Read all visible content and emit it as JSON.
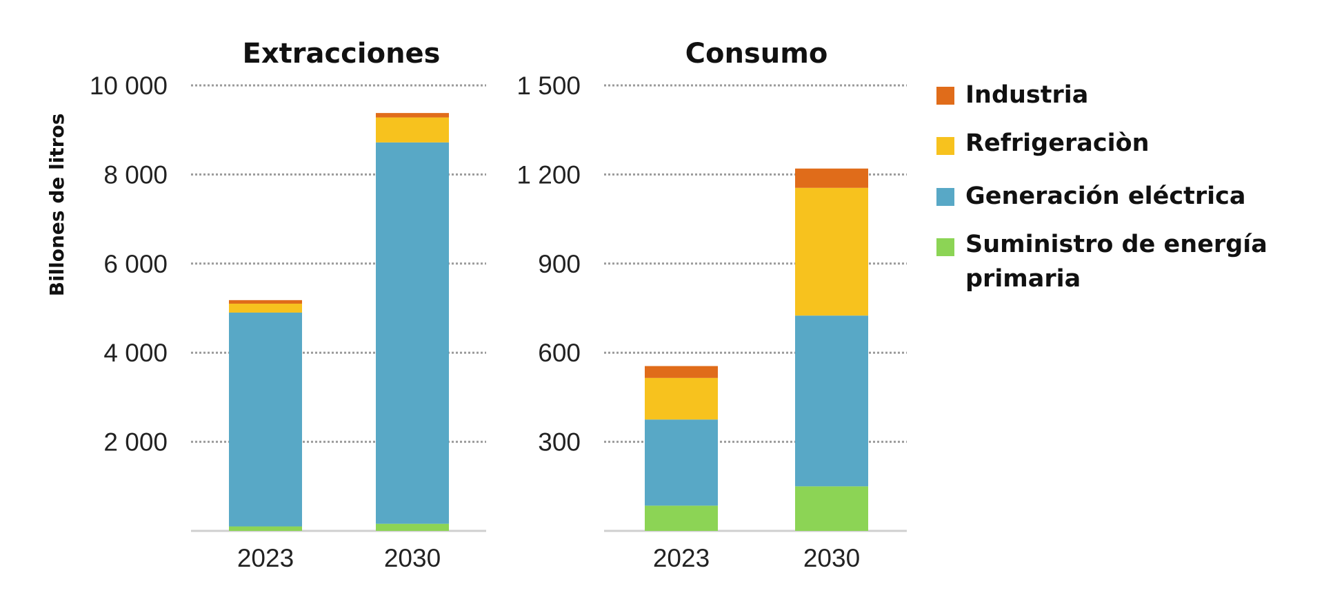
{
  "legend": [
    {
      "name": "Industria",
      "color": "#E06C1A"
    },
    {
      "name": "Refrigeraciòn",
      "color": "#F7C21E"
    },
    {
      "name": "Generación eléctrica",
      "color": "#58A8C6"
    },
    {
      "name": "Suministro de energía primaria",
      "color": "#8CD455"
    }
  ],
  "chart_data": [
    {
      "type": "bar",
      "stacked": true,
      "title": "Extracciones",
      "ylabel": "Billones de litros",
      "xlabel": "",
      "categories": [
        "2023",
        "2030"
      ],
      "ylim": [
        0,
        10000
      ],
      "yticks": [
        2000,
        4000,
        6000,
        8000,
        10000
      ],
      "ytick_labels": [
        "2 000",
        "4 000",
        "6 000",
        "8 000",
        "10 000"
      ],
      "grid": true,
      "series": [
        {
          "name": "Suministro de energía primaria",
          "color": "#8CD455",
          "values": [
            100,
            160
          ]
        },
        {
          "name": "Generación eléctrica",
          "color": "#58A8C6",
          "values": [
            4800,
            8560
          ]
        },
        {
          "name": "Refrigeraciòn",
          "color": "#F7C21E",
          "values": [
            200,
            560
          ]
        },
        {
          "name": "Industria",
          "color": "#E06C1A",
          "values": [
            80,
            100
          ]
        }
      ]
    },
    {
      "type": "bar",
      "stacked": true,
      "title": "Consumo",
      "ylabel": "",
      "xlabel": "",
      "categories": [
        "2023",
        "2030"
      ],
      "ylim": [
        0,
        1500
      ],
      "yticks": [
        300,
        600,
        900,
        1200,
        1500
      ],
      "ytick_labels": [
        "300",
        "600",
        "900",
        "1 200",
        "1 500"
      ],
      "grid": true,
      "series": [
        {
          "name": "Suministro de energía primaria",
          "color": "#8CD455",
          "values": [
            85,
            150
          ]
        },
        {
          "name": "Generación eléctrica",
          "color": "#58A8C6",
          "values": [
            290,
            575
          ]
        },
        {
          "name": "Refrigeraciòn",
          "color": "#F7C21E",
          "values": [
            140,
            430
          ]
        },
        {
          "name": "Industria",
          "color": "#E06C1A",
          "values": [
            40,
            65
          ]
        }
      ],
      "legend_position": "right"
    }
  ]
}
